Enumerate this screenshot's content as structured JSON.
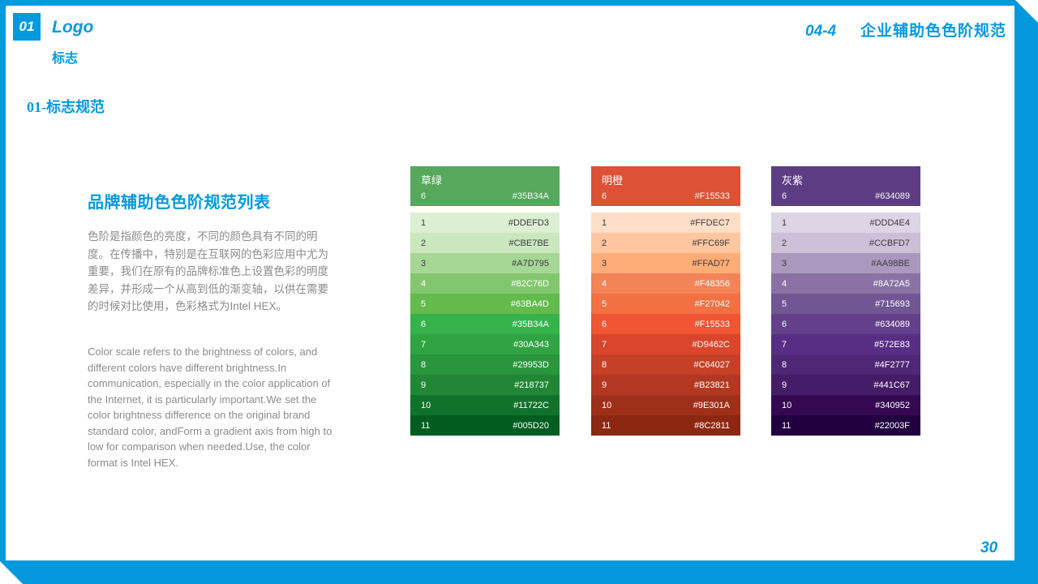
{
  "accent": {
    "blue": "#0499DF"
  },
  "header": {
    "chapter_number": "01",
    "chapter_title_en": "Logo",
    "chapter_title_zh": "标志",
    "section_heading": "01-标志规范",
    "doc_code": "04-4",
    "doc_title": "企业辅助色色阶规范"
  },
  "intro": {
    "title": "品牌辅助色色阶规范列表",
    "paragraph_zh": "色阶是指颜色的亮度，不同的颜色具有不同的明度。在传播中，特别是在互联网的色彩应用中尤为重要，我们在原有的品牌标准色上设置色彩的明度差异，并形成一个从高到低的渐变轴，以供在需要的时候对比使用，色彩格式为Intel HEX。",
    "paragraph_en": "Color scale refers to the brightness of colors, and different colors have different brightness.In communication, especially in the color application of the Internet, it is particularly important.We set the color brightness difference on the original brand standard color, andForm a gradient axis from high to low for comparison when needed.Use, the color format is Intel HEX."
  },
  "footer": {
    "page_number": "30"
  },
  "palettes": [
    {
      "name": "草绿",
      "slug": "grass-green",
      "header_color": "#55A85C",
      "base_index": "6",
      "base_hex": "#35B34A",
      "rows": [
        {
          "index": "1",
          "hex": "#DDEFD3",
          "text": "dark"
        },
        {
          "index": "2",
          "hex": "#CBE7BE",
          "text": "dark"
        },
        {
          "index": "3",
          "hex": "#A7D795",
          "text": "dark"
        },
        {
          "index": "4",
          "hex": "#82C76D",
          "text": "light"
        },
        {
          "index": "5",
          "hex": "#63BA4D",
          "text": "light"
        },
        {
          "index": "6",
          "hex": "#35B34A",
          "text": "light"
        },
        {
          "index": "7",
          "hex": "#30A343",
          "text": "light"
        },
        {
          "index": "8",
          "hex": "#29953D",
          "text": "light"
        },
        {
          "index": "9",
          "hex": "#218737",
          "text": "light"
        },
        {
          "index": "10",
          "hex": "#11722C",
          "text": "light"
        },
        {
          "index": "11",
          "hex": "#005D20",
          "text": "light"
        }
      ]
    },
    {
      "name": "明橙",
      "slug": "bright-orange",
      "header_color": "#DD5134",
      "base_index": "6",
      "base_hex": "#F15533",
      "rows": [
        {
          "index": "1",
          "hex": "#FFDEC7",
          "text": "dark"
        },
        {
          "index": "2",
          "hex": "#FFC69F",
          "text": "dark"
        },
        {
          "index": "3",
          "hex": "#FFAD77",
          "text": "dark"
        },
        {
          "index": "4",
          "hex": "#F48356",
          "text": "light"
        },
        {
          "index": "5",
          "hex": "#F27042",
          "text": "light"
        },
        {
          "index": "6",
          "hex": "#F15533",
          "text": "light"
        },
        {
          "index": "7",
          "hex": "#D9462C",
          "text": "light"
        },
        {
          "index": "8",
          "hex": "#C64027",
          "text": "light"
        },
        {
          "index": "9",
          "hex": "#B23821",
          "text": "light"
        },
        {
          "index": "10",
          "hex": "#9E301A",
          "text": "light"
        },
        {
          "index": "11",
          "hex": "#8C2811",
          "text": "light"
        }
      ]
    },
    {
      "name": "灰紫",
      "slug": "gray-purple",
      "header_color": "#5C3D84",
      "base_index": "6",
      "base_hex": "#634089",
      "rows": [
        {
          "index": "1",
          "hex": "#DDD4E4",
          "text": "dark"
        },
        {
          "index": "2",
          "hex": "#CCBFD7",
          "text": "dark"
        },
        {
          "index": "3",
          "hex": "#AA98BE",
          "text": "dark"
        },
        {
          "index": "4",
          "hex": "#8A72A5",
          "text": "light"
        },
        {
          "index": "5",
          "hex": "#715693",
          "text": "light"
        },
        {
          "index": "6",
          "hex": "#634089",
          "text": "light"
        },
        {
          "index": "7",
          "hex": "#572E83",
          "text": "light"
        },
        {
          "index": "8",
          "hex": "#4F2777",
          "text": "light"
        },
        {
          "index": "9",
          "hex": "#441C67",
          "text": "light"
        },
        {
          "index": "10",
          "hex": "#340952",
          "text": "light"
        },
        {
          "index": "11",
          "hex": "#22003F",
          "text": "light"
        }
      ]
    }
  ]
}
